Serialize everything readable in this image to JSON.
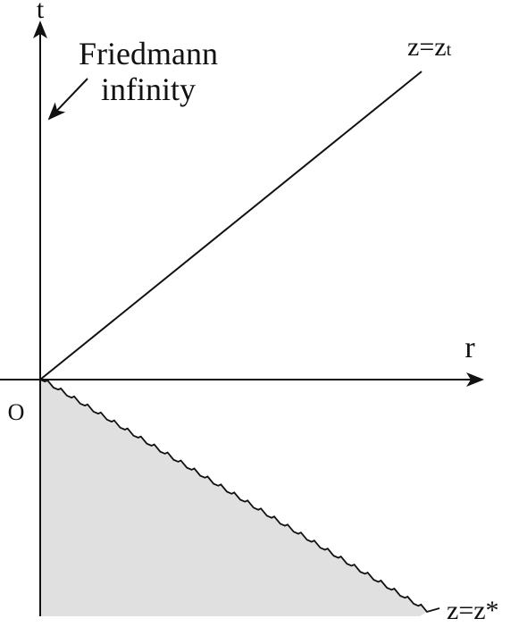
{
  "axes": {
    "t": "t",
    "r": "r",
    "origin": "O"
  },
  "annotation": {
    "lines": [
      "Friedmann",
      "infinity"
    ]
  },
  "upper_line_label": {
    "main": "z=z",
    "sub": "t"
  },
  "lower_line_label": {
    "main": "z=z*"
  }
}
